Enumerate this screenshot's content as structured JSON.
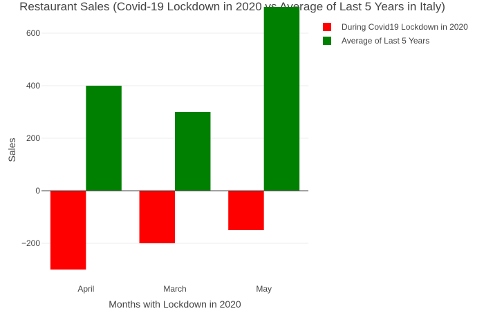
{
  "chart_data": {
    "type": "bar",
    "title": "Restaurant Sales (Covid-19 Lockdown in 2020 vs Average of Last 5 Years in Italy)",
    "xlabel": "Months with Lockdown in 2020",
    "ylabel": "Sales",
    "categories": [
      "April",
      "March",
      "May"
    ],
    "series": [
      {
        "name": "During Covid19 Lockdown in 2020",
        "color": "#ff0000",
        "values": [
          -300,
          -200,
          -150
        ]
      },
      {
        "name": "Average of Last 5 Years",
        "color": "#008000",
        "values": [
          400,
          300,
          700
        ]
      }
    ],
    "ylim": [
      -300,
      700
    ],
    "yticks": [
      -200,
      0,
      200,
      400,
      600
    ],
    "ytick_labels": [
      "−200",
      "0",
      "200",
      "400",
      "600"
    ],
    "grid": true,
    "legend": "top-right"
  }
}
